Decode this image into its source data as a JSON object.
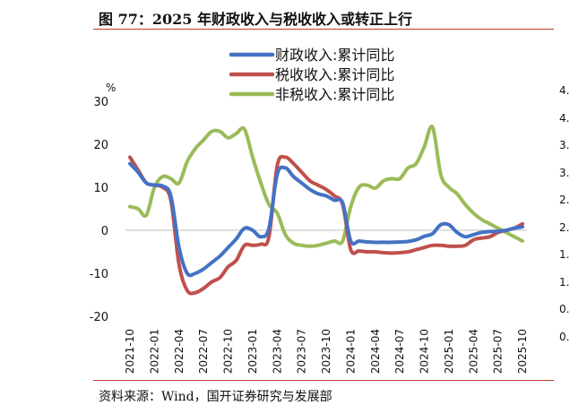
{
  "title": "图 77：2025 年财政收入与税收收入或转正上行",
  "source": "资料来源：Wind，国开证券研究与发展部",
  "right_axis_peek": [
    "4.",
    "4.",
    "3.",
    "3.",
    "2.",
    "2.",
    "1.",
    "1.",
    "0.",
    "0."
  ],
  "chart_data": {
    "type": "line",
    "title": "",
    "xlabel": "",
    "ylabel": "%",
    "ylim": [
      -20,
      30
    ],
    "yticks": [
      30,
      20,
      10,
      0,
      -10,
      -20
    ],
    "grid": false,
    "legend_position": "top-center",
    "x_tick_labels": [
      "2021-10",
      "2022-01",
      "2022-04",
      "2022-07",
      "2022-10",
      "2023-01",
      "2023-04",
      "2023-07",
      "2023-10",
      "2024-01",
      "2024-04",
      "2024-07",
      "2024-10",
      "2025-01",
      "2025-04",
      "2025-07",
      "2025-10"
    ],
    "x": [
      "2021-10",
      "2021-11",
      "2021-12",
      "2022-01",
      "2022-02",
      "2022-03",
      "2022-04",
      "2022-05",
      "2022-06",
      "2022-07",
      "2022-08",
      "2022-09",
      "2022-10",
      "2022-11",
      "2022-12",
      "2023-01",
      "2023-02",
      "2023-03",
      "2023-04",
      "2023-05",
      "2023-06",
      "2023-07",
      "2023-08",
      "2023-09",
      "2023-10",
      "2023-11",
      "2023-12",
      "2024-01",
      "2024-02",
      "2024-03",
      "2024-04",
      "2024-05",
      "2024-06",
      "2024-07",
      "2024-08",
      "2024-09",
      "2024-10",
      "2024-11",
      "2024-12",
      "2025-01",
      "2025-02",
      "2025-03",
      "2025-04",
      "2025-05",
      "2025-06",
      "2025-07",
      "2025-08",
      "2025-09",
      "2025-10"
    ],
    "series": [
      {
        "name": "财政收入:累计同比",
        "color": "#4472c4",
        "values": [
          15.5,
          13.5,
          11.0,
          10.5,
          10.3,
          8.0,
          -4.0,
          -10.0,
          -10.0,
          -9.0,
          -7.5,
          -6.0,
          -4.0,
          -2.0,
          0.5,
          0.0,
          -1.5,
          0.5,
          13.0,
          14.5,
          12.5,
          11.0,
          9.5,
          8.5,
          8.0,
          7.0,
          6.4,
          -2.5,
          -2.5,
          -2.7,
          -2.8,
          -2.8,
          -2.8,
          -2.7,
          -2.6,
          -2.2,
          -1.4,
          -0.8,
          1.3,
          1.3,
          -0.5,
          -1.5,
          -1.0,
          -0.5,
          -0.3,
          -0.2,
          0.0,
          0.5,
          0.8
        ]
      },
      {
        "name": "税收收入:累计同比",
        "color": "#c0504d",
        "values": [
          17.0,
          14.0,
          11.0,
          10.5,
          10.0,
          7.0,
          -8.0,
          -14.0,
          -14.5,
          -13.5,
          -12.0,
          -11.0,
          -8.5,
          -7.0,
          -3.5,
          -3.5,
          -3.2,
          -1.5,
          15.0,
          17.0,
          15.5,
          13.5,
          11.5,
          10.5,
          9.5,
          8.0,
          6.0,
          -4.5,
          -4.8,
          -5.0,
          -5.0,
          -5.2,
          -5.3,
          -5.2,
          -5.0,
          -4.5,
          -4.0,
          -3.5,
          -3.5,
          -3.7,
          -3.7,
          -3.5,
          -2.2,
          -1.8,
          -1.5,
          -0.5,
          0.0,
          0.5,
          1.5
        ]
      },
      {
        "name": "非税收入:累计同比",
        "color": "#9bbb59",
        "values": [
          5.5,
          5.0,
          3.5,
          10.0,
          12.5,
          12.0,
          11.0,
          16.0,
          19.0,
          21.0,
          23.0,
          23.0,
          21.5,
          22.5,
          23.5,
          17.0,
          11.0,
          6.0,
          4.0,
          -1.0,
          -3.0,
          -3.5,
          -3.7,
          -3.5,
          -3.0,
          -2.5,
          -2.5,
          5.5,
          10.0,
          10.5,
          9.8,
          11.5,
          12.0,
          12.0,
          14.5,
          15.5,
          19.5,
          24.0,
          13.0,
          10.0,
          8.5,
          6.0,
          4.0,
          2.5,
          1.5,
          0.5,
          -0.5,
          -1.5,
          -2.5
        ]
      }
    ]
  }
}
